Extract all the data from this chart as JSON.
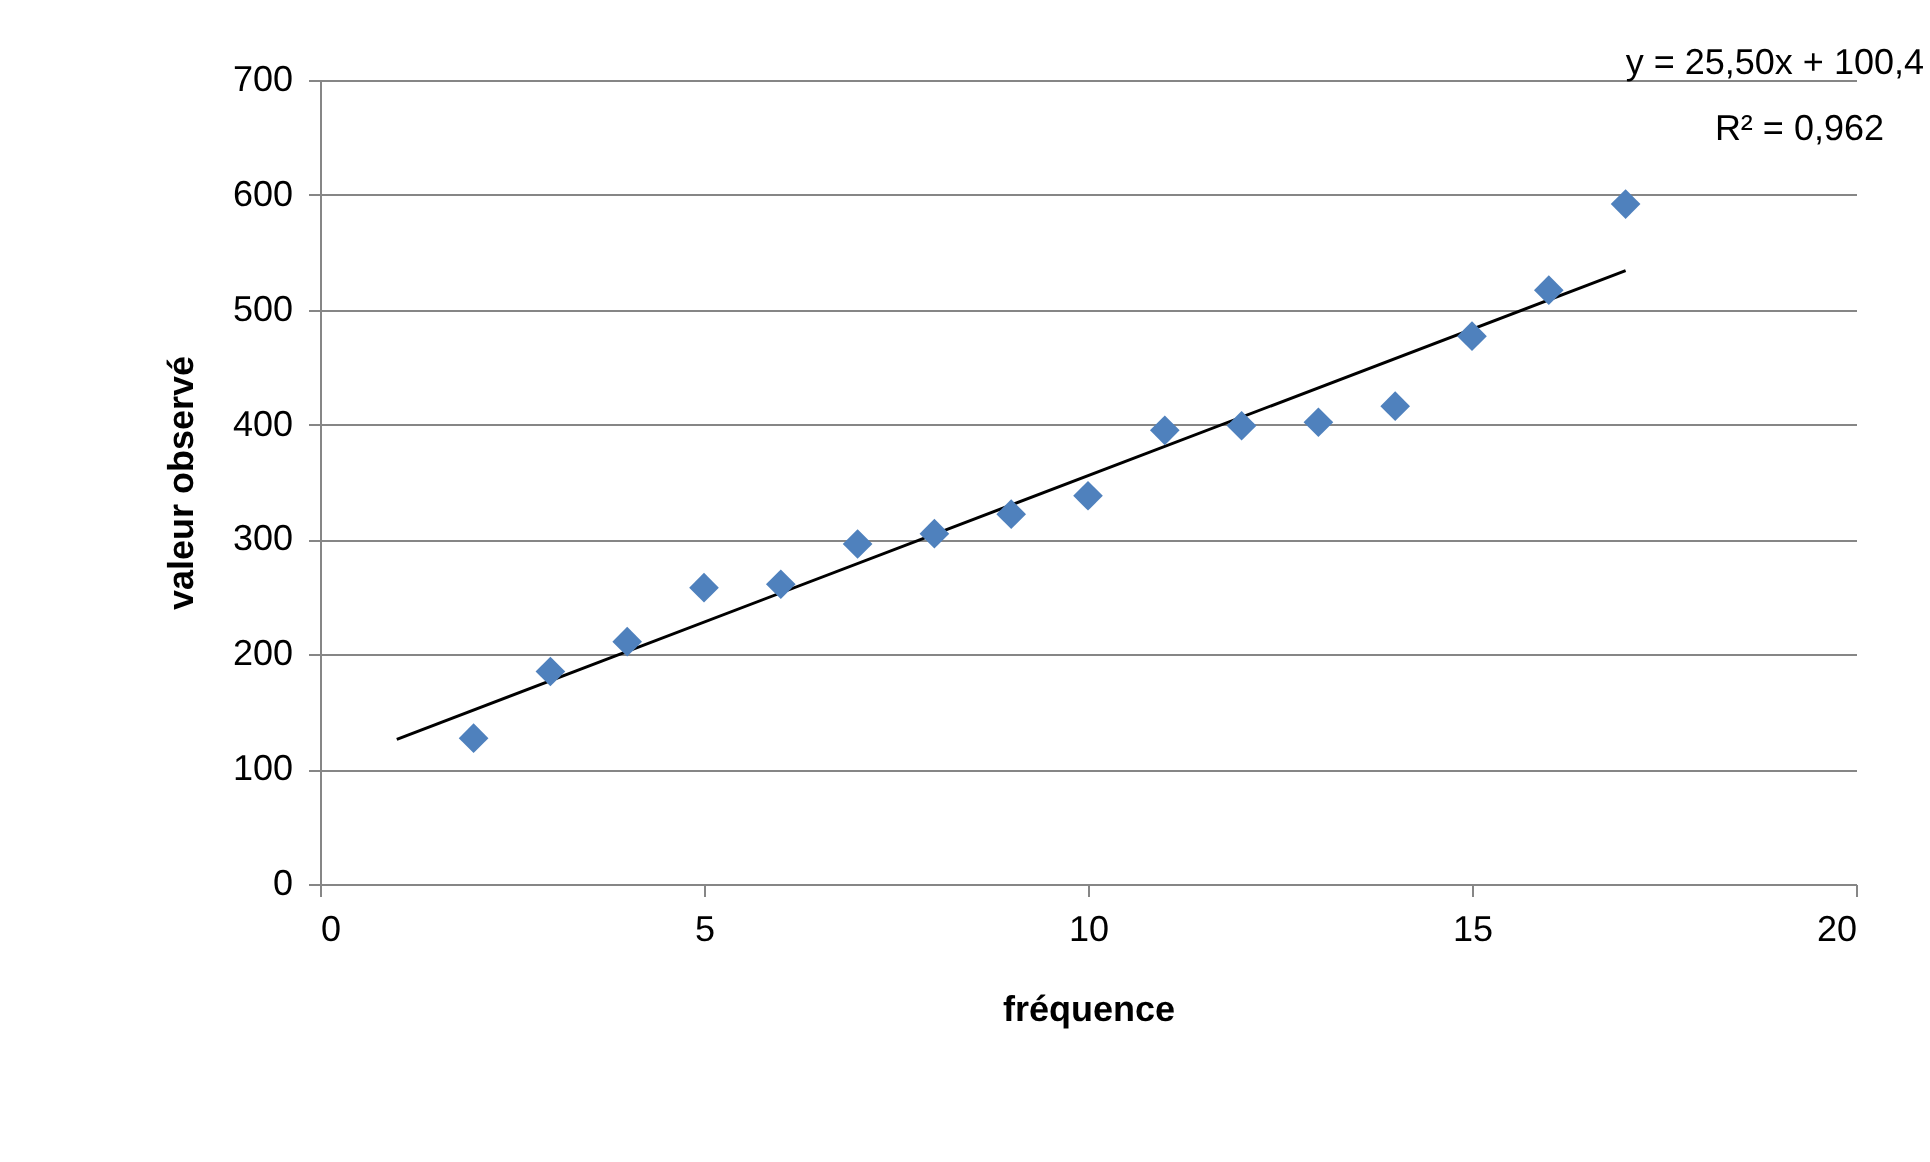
{
  "chart_data": {
    "type": "scatter",
    "xlabel": "fréquence",
    "ylabel": "valeur observé",
    "annotations": [
      "y = 25,50x + 100,4",
      "R² = 0,962"
    ],
    "series": [
      {
        "color": "#4f81bd",
        "marker": "diamond",
        "x": [
          2,
          3,
          4,
          5,
          6,
          7,
          8,
          9,
          10,
          11,
          12,
          13,
          14,
          15,
          16,
          17
        ],
        "values": [
          127,
          185,
          211,
          258,
          261,
          296,
          305,
          322,
          338,
          395,
          399,
          402,
          416,
          477,
          517,
          592
        ]
      },
      {
        "type": "line",
        "color": "#000000",
        "x": [
          1,
          17
        ],
        "values": [
          126,
          534
        ]
      }
    ],
    "xlim": [
      0,
      20
    ],
    "xticks": [
      0,
      5,
      10,
      15,
      20
    ],
    "ylim": [
      0,
      700
    ],
    "yticks": [
      0,
      100,
      200,
      300,
      400,
      500,
      600,
      700
    ],
    "grid": "y"
  }
}
